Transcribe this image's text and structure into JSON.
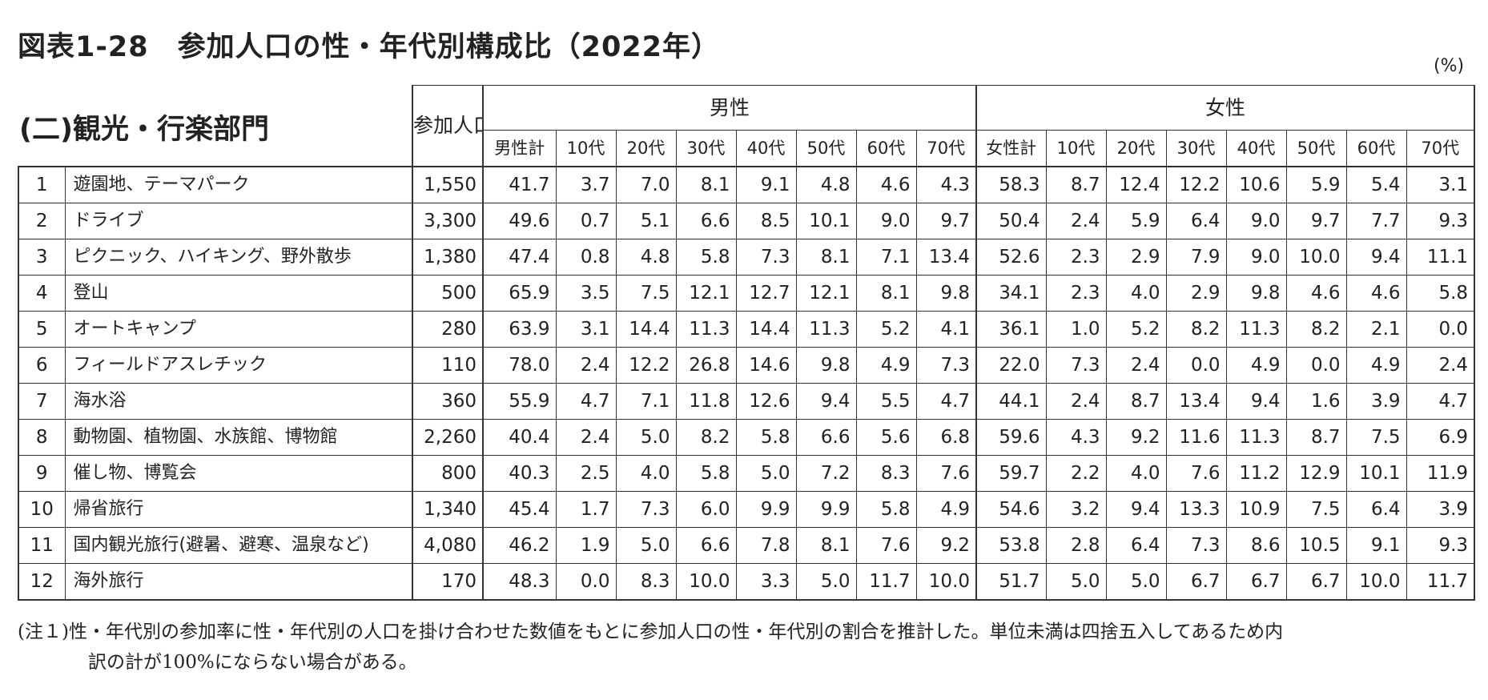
{
  "title": "図表1-28　参加人口の性・年代別構成比（2022年）",
  "unit": "(%)",
  "section": "(二)観光・行楽部門",
  "headers": {
    "population": "参加人口（万人）",
    "male": "男性",
    "female": "女性",
    "male_total": "男性計",
    "female_total": "女性計",
    "ages": [
      "10代",
      "20代",
      "30代",
      "40代",
      "50代",
      "60代",
      "70代"
    ]
  },
  "rows": [
    {
      "no": "1",
      "name": "遊園地、テーマパーク",
      "pop": "1,550",
      "male_total": "41.7",
      "male": [
        "3.7",
        "7.0",
        "8.1",
        "9.1",
        "4.8",
        "4.6",
        "4.3"
      ],
      "female_total": "58.3",
      "female": [
        "8.7",
        "12.4",
        "12.2",
        "10.6",
        "5.9",
        "5.4",
        "3.1"
      ]
    },
    {
      "no": "2",
      "name": "ドライブ",
      "pop": "3,300",
      "male_total": "49.6",
      "male": [
        "0.7",
        "5.1",
        "6.6",
        "8.5",
        "10.1",
        "9.0",
        "9.7"
      ],
      "female_total": "50.4",
      "female": [
        "2.4",
        "5.9",
        "6.4",
        "9.0",
        "9.7",
        "7.7",
        "9.3"
      ]
    },
    {
      "no": "3",
      "name": "ピクニック、ハイキング、野外散歩",
      "pop": "1,380",
      "male_total": "47.4",
      "male": [
        "0.8",
        "4.8",
        "5.8",
        "7.3",
        "8.1",
        "7.1",
        "13.4"
      ],
      "female_total": "52.6",
      "female": [
        "2.3",
        "2.9",
        "7.9",
        "9.0",
        "10.0",
        "9.4",
        "11.1"
      ]
    },
    {
      "no": "4",
      "name": "登山",
      "pop": "500",
      "male_total": "65.9",
      "male": [
        "3.5",
        "7.5",
        "12.1",
        "12.7",
        "12.1",
        "8.1",
        "9.8"
      ],
      "female_total": "34.1",
      "female": [
        "2.3",
        "4.0",
        "2.9",
        "9.8",
        "4.6",
        "4.6",
        "5.8"
      ]
    },
    {
      "no": "5",
      "name": "オートキャンプ",
      "pop": "280",
      "male_total": "63.9",
      "male": [
        "3.1",
        "14.4",
        "11.3",
        "14.4",
        "11.3",
        "5.2",
        "4.1"
      ],
      "female_total": "36.1",
      "female": [
        "1.0",
        "5.2",
        "8.2",
        "11.3",
        "8.2",
        "2.1",
        "0.0"
      ]
    },
    {
      "no": "6",
      "name": "フィールドアスレチック",
      "pop": "110",
      "male_total": "78.0",
      "male": [
        "2.4",
        "12.2",
        "26.8",
        "14.6",
        "9.8",
        "4.9",
        "7.3"
      ],
      "female_total": "22.0",
      "female": [
        "7.3",
        "2.4",
        "0.0",
        "4.9",
        "0.0",
        "4.9",
        "2.4"
      ]
    },
    {
      "no": "7",
      "name": "海水浴",
      "pop": "360",
      "male_total": "55.9",
      "male": [
        "4.7",
        "7.1",
        "11.8",
        "12.6",
        "9.4",
        "5.5",
        "4.7"
      ],
      "female_total": "44.1",
      "female": [
        "2.4",
        "8.7",
        "13.4",
        "9.4",
        "1.6",
        "3.9",
        "4.7"
      ]
    },
    {
      "no": "8",
      "name": "動物園、植物園、水族館、博物館",
      "pop": "2,260",
      "male_total": "40.4",
      "male": [
        "2.4",
        "5.0",
        "8.2",
        "5.8",
        "6.6",
        "5.6",
        "6.8"
      ],
      "female_total": "59.6",
      "female": [
        "4.3",
        "9.2",
        "11.6",
        "11.3",
        "8.7",
        "7.5",
        "6.9"
      ]
    },
    {
      "no": "9",
      "name": "催し物、博覧会",
      "pop": "800",
      "male_total": "40.3",
      "male": [
        "2.5",
        "4.0",
        "5.8",
        "5.0",
        "7.2",
        "8.3",
        "7.6"
      ],
      "female_total": "59.7",
      "female": [
        "2.2",
        "4.0",
        "7.6",
        "11.2",
        "12.9",
        "10.1",
        "11.9"
      ]
    },
    {
      "no": "10",
      "name": "帰省旅行",
      "pop": "1,340",
      "male_total": "45.4",
      "male": [
        "1.7",
        "7.3",
        "6.0",
        "9.9",
        "9.9",
        "5.8",
        "4.9"
      ],
      "female_total": "54.6",
      "female": [
        "3.2",
        "9.4",
        "13.3",
        "10.9",
        "7.5",
        "6.4",
        "3.9"
      ]
    },
    {
      "no": "11",
      "name": "国内観光旅行(避暑、避寒、温泉など)",
      "pop": "4,080",
      "male_total": "46.2",
      "male": [
        "1.9",
        "5.0",
        "6.6",
        "7.8",
        "8.1",
        "7.6",
        "9.2"
      ],
      "female_total": "53.8",
      "female": [
        "2.8",
        "6.4",
        "7.3",
        "8.6",
        "10.5",
        "9.1",
        "9.3"
      ]
    },
    {
      "no": "12",
      "name": "海外旅行",
      "pop": "170",
      "male_total": "48.3",
      "male": [
        "0.0",
        "8.3",
        "10.0",
        "3.3",
        "5.0",
        "11.7",
        "10.0"
      ],
      "female_total": "51.7",
      "female": [
        "5.0",
        "5.0",
        "6.7",
        "6.7",
        "6.7",
        "10.0",
        "11.7"
      ]
    }
  ],
  "notes": {
    "line1": "(注１)性・年代別の参加率に性・年代別の人口を掛け合わせた数値をもとに参加人口の性・年代別の割合を推計した。単位未満は四捨五入してあるため内",
    "line2": "訳の計が100%にならない場合がある。"
  }
}
